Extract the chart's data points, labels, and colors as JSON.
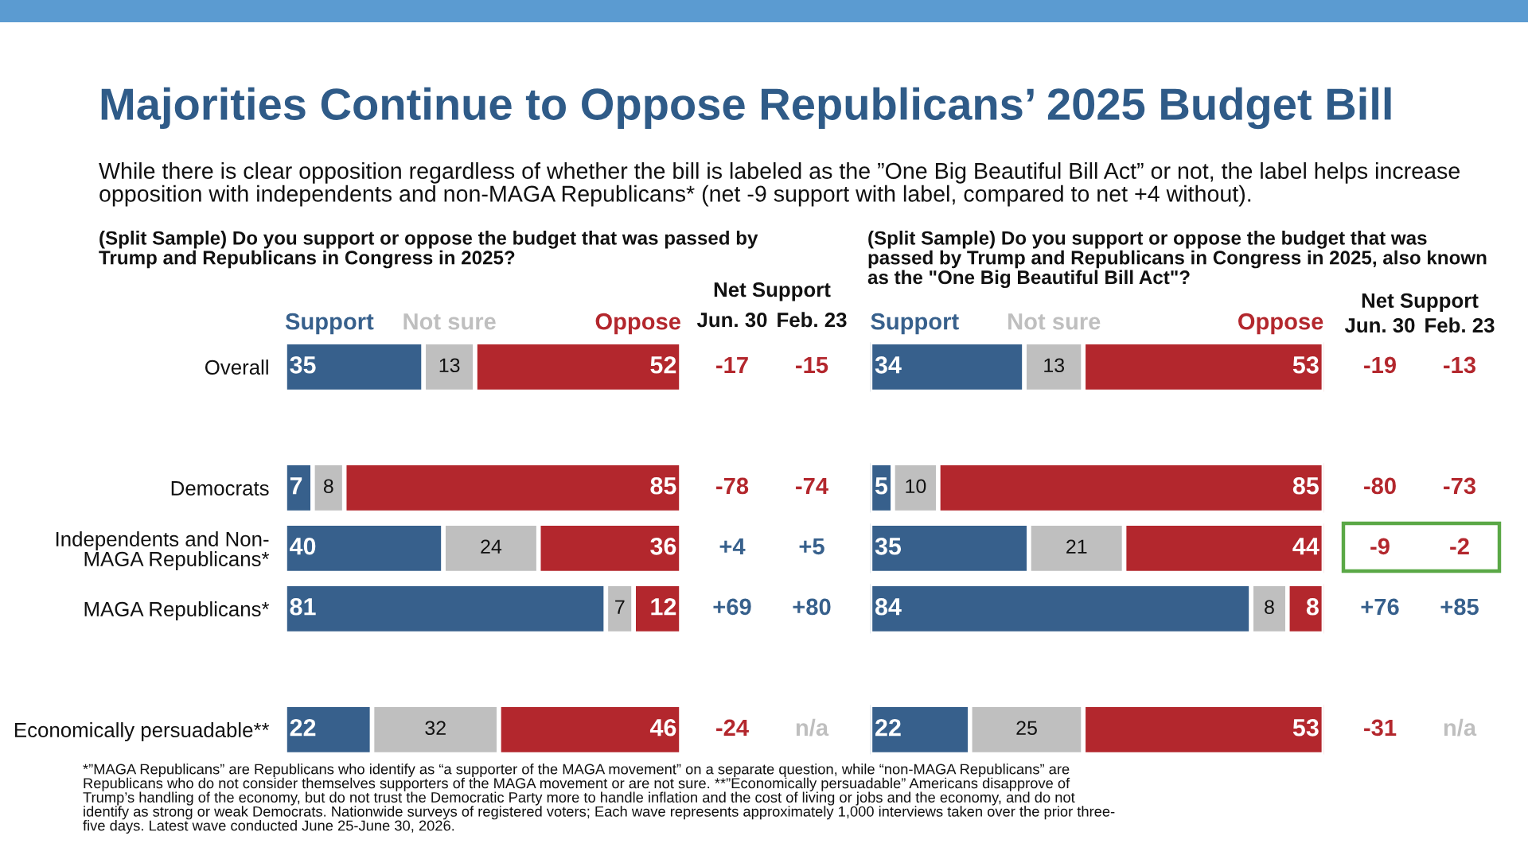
{
  "chart_data": [
    {
      "type": "other",
      "title": "Majorities Continue to Oppose Republicans’ 2025 Budget Bill",
      "subtitle": "While there is clear opposition regardless of whether the bill is labeled as the ”One Big Beautiful Bill Act” or not, the label helps increase\nopposition with independents and non-MAGA Republicans* (net -9 support with label, compared to net +4 without).",
      "annotations": [
        "*”MAGA Republicans” are Republicans who identify as “a supporter of the MAGA movement” on a separate question, while “non-MAGA Republicans” are\nRepublicans who do not consider themselves supporters of the MAGA movement or are not sure. **”Economically persuadable” Americans disapprove of\nTrump’s handling of the economy, but do not trust the Democratic Party more to handle inflation and the cost of living or jobs and the economy, and do not\nidentify as strong or weak Democrats. Nationwide surveys of registered voters; Each wave represents approximately 1,000 interviews taken over the prior three-\nfive days. Latest wave conducted June 25-June 30, 2026."
      ]
    },
    {
      "type": "bar",
      "orientation": "horizontal",
      "stacked": true,
      "title": "(Split Sample) Do you support or oppose the budget that was passed by\nTrump and Republicans in Congress in 2025?",
      "categories": [
        "Overall",
        null,
        "Democrats",
        "Independents and Non-\nMAGA Republicans*",
        "MAGA Republicans*",
        null,
        "Economically persuadable**"
      ],
      "series": [
        {
          "name": "Support",
          "color": "#37608c",
          "values": [
            35,
            null,
            7,
            40,
            81,
            null,
            22
          ]
        },
        {
          "name": "Not sure",
          "color": "#bfbfbf",
          "values": [
            13,
            null,
            8,
            24,
            7,
            null,
            32
          ]
        },
        {
          "name": "Oppose",
          "color": "#b3272d",
          "values": [
            52,
            null,
            85,
            36,
            12,
            null,
            46
          ]
        }
      ],
      "xlim": [
        0,
        100
      ],
      "data_labels": true,
      "legend": "top",
      "tick_labels": "y"
    },
    {
      "type": "other",
      "title": "Net Support",
      "annotations": [
        "Jun. 30",
        "Feb. 23",
        "-17",
        "-15",
        "-78",
        "-74",
        "+4",
        "+5",
        "+69",
        "+80",
        "-24",
        "n/a"
      ]
    },
    {
      "type": "bar",
      "orientation": "horizontal",
      "stacked": true,
      "title": "(Split Sample) Do you support or oppose the budget that was\npassed by Trump and Republicans in Congress in 2025, also known\nas the \"One Big Beautiful Bill Act\"?",
      "categories": [
        null,
        null,
        null,
        null,
        null,
        null,
        null
      ],
      "series": [
        {
          "name": "Support",
          "color": "#37608c",
          "values": [
            34,
            null,
            5,
            35,
            84,
            null,
            22
          ]
        },
        {
          "name": "Not sure",
          "color": "#bfbfbf",
          "values": [
            13,
            null,
            10,
            21,
            8,
            null,
            25
          ]
        },
        {
          "name": "Oppose",
          "color": "#b3272d",
          "values": [
            53,
            null,
            85,
            44,
            8,
            null,
            53
          ]
        }
      ],
      "xlim": [
        0,
        100
      ],
      "data_labels": true,
      "legend": "top",
      "tick_labels": false
    },
    {
      "type": "other",
      "title": "Net Support",
      "annotations": [
        "Jun. 30",
        "Feb. 23",
        "-19",
        "-13",
        "-80",
        "-73",
        "-9",
        "-2",
        "+76",
        "+85",
        "-31",
        "n/a"
      ]
    }
  ]
}
